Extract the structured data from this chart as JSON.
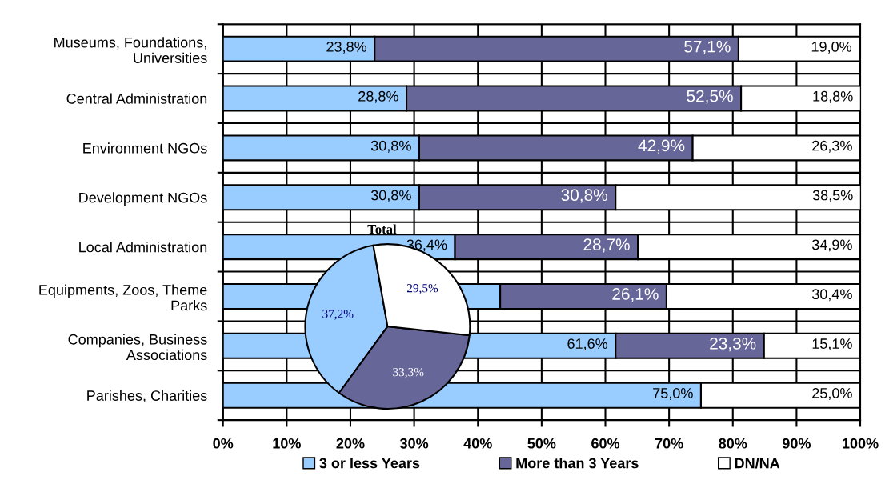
{
  "chart_data": [
    {
      "type": "bar",
      "orientation": "horizontal",
      "stacked": true,
      "categories": [
        "Museums, Foundations,\nUniversities",
        "Central Administration",
        "Environment NGOs",
        "Development NGOs",
        "Local Administration",
        "Equipments, Zoos, Theme\nParks",
        "Companies, Business\nAssociations",
        "Parishes, Charities"
      ],
      "series": [
        {
          "name": "3 or less Years",
          "color": "#99ccff",
          "values": [
            23.8,
            28.8,
            30.8,
            30.8,
            36.4,
            43.5,
            61.6,
            75.0
          ],
          "value_labels": [
            "23,8%",
            "28,8%",
            "30,8%",
            "30,8%",
            "36,4%",
            null,
            "61,6%",
            "75,0%"
          ]
        },
        {
          "name": "More than 3 Years",
          "color": "#666699",
          "values": [
            57.1,
            52.5,
            42.9,
            30.8,
            28.7,
            26.1,
            23.3,
            null
          ],
          "value_labels": [
            "57,1%",
            "52,5%",
            "42,9%",
            "30,8%",
            "28,7%",
            "26,1%",
            "23,3%",
            null
          ]
        },
        {
          "name": "DN/NA",
          "color": "#ffffff",
          "values": [
            19.0,
            18.8,
            26.3,
            38.5,
            34.9,
            30.4,
            15.1,
            25.0
          ],
          "value_labels": [
            "19,0%",
            "18,8%",
            "26,3%",
            "38,5%",
            "34,9%",
            "30,4%",
            "15,1%",
            "25,0%"
          ]
        }
      ],
      "xlim": [
        0,
        100
      ],
      "xticks": [
        {
          "value": 0,
          "label": "0%"
        },
        {
          "value": 10,
          "label": "10%"
        },
        {
          "value": 20,
          "label": "20%"
        },
        {
          "value": 30,
          "label": "30%"
        },
        {
          "value": 40,
          "label": "40%"
        },
        {
          "value": 50,
          "label": "50%"
        },
        {
          "value": 60,
          "label": "60%"
        },
        {
          "value": 70,
          "label": "70%"
        },
        {
          "value": 80,
          "label": "80%"
        },
        {
          "value": 90,
          "label": "90%"
        },
        {
          "value": 100,
          "label": "100%"
        }
      ],
      "grid": true,
      "legend": "bottom"
    },
    {
      "type": "pie",
      "title": "Total",
      "categories": [
        null,
        null,
        null
      ],
      "values": [
        37.2,
        33.3,
        29.5
      ],
      "colors": [
        "#99ccff",
        "#666699",
        "#ffffff"
      ],
      "value_labels": [
        "37,2%",
        "33,3%",
        "29,5%"
      ]
    }
  ]
}
